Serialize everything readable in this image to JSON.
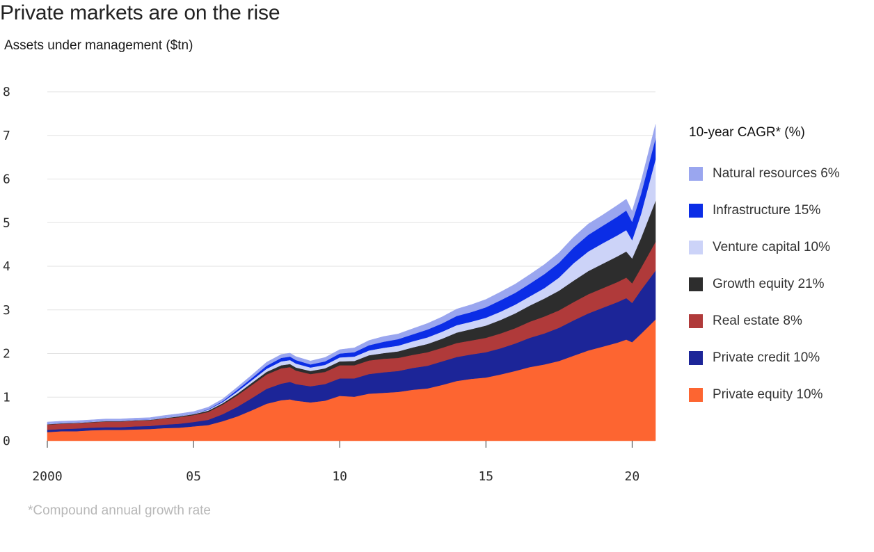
{
  "title": "Private markets are on the rise",
  "subtitle": "Assets under management ($tn)",
  "footnote": "*Compound annual growth rate",
  "legend_title": "10-year CAGR* (%)",
  "chart_data": {
    "type": "area",
    "stacked": true,
    "title": "Private markets are on the rise",
    "ylabel": "Assets under management ($tn)",
    "xlabel": "",
    "xlim": [
      2000,
      2020.8
    ],
    "ylim": [
      0,
      8
    ],
    "y_ticks": [
      0,
      1,
      2,
      3,
      4,
      5,
      6,
      7,
      8
    ],
    "y_tick_labels": [
      "0",
      "1",
      "2",
      "3",
      "4",
      "5",
      "6",
      "7",
      "8"
    ],
    "x_ticks": [
      2000,
      2005,
      2010,
      2015,
      2020
    ],
    "x_tick_labels": [
      "2000",
      "05",
      "10",
      "15",
      "20"
    ],
    "grid": true,
    "legend_position": "right",
    "x": [
      2000,
      2000.5,
      2001,
      2001.5,
      2002,
      2002.5,
      2003,
      2003.5,
      2004,
      2004.5,
      2005,
      2005.5,
      2006,
      2006.5,
      2007,
      2007.5,
      2008,
      2008.3,
      2008.5,
      2009,
      2009.5,
      2010,
      2010.5,
      2011,
      2011.5,
      2012,
      2012.5,
      2013,
      2013.5,
      2014,
      2014.5,
      2015,
      2015.5,
      2016,
      2016.5,
      2017,
      2017.5,
      2018,
      2018.5,
      2019,
      2019.5,
      2019.8,
      2020,
      2020.3,
      2020.8
    ],
    "series": [
      {
        "name": "Private equity 10%",
        "color": "#fd6531",
        "values": [
          0.2,
          0.22,
          0.22,
          0.24,
          0.25,
          0.25,
          0.26,
          0.27,
          0.29,
          0.3,
          0.33,
          0.36,
          0.45,
          0.56,
          0.7,
          0.85,
          0.93,
          0.95,
          0.92,
          0.88,
          0.92,
          1.03,
          1.01,
          1.08,
          1.1,
          1.12,
          1.17,
          1.2,
          1.28,
          1.37,
          1.42,
          1.45,
          1.52,
          1.6,
          1.69,
          1.75,
          1.83,
          1.95,
          2.07,
          2.16,
          2.25,
          2.32,
          2.26,
          2.45,
          2.78
        ]
      },
      {
        "name": "Private credit 10%",
        "color": "#1c2598",
        "values": [
          0.05,
          0.05,
          0.06,
          0.06,
          0.06,
          0.06,
          0.07,
          0.07,
          0.08,
          0.09,
          0.1,
          0.12,
          0.16,
          0.22,
          0.28,
          0.34,
          0.38,
          0.4,
          0.38,
          0.37,
          0.38,
          0.4,
          0.42,
          0.45,
          0.47,
          0.48,
          0.5,
          0.52,
          0.54,
          0.55,
          0.56,
          0.58,
          0.6,
          0.63,
          0.67,
          0.71,
          0.76,
          0.81,
          0.85,
          0.89,
          0.93,
          0.95,
          0.9,
          1.0,
          1.12
        ]
      },
      {
        "name": "Real estate 8%",
        "color": "#b03a3a",
        "values": [
          0.12,
          0.12,
          0.12,
          0.12,
          0.13,
          0.13,
          0.13,
          0.13,
          0.14,
          0.15,
          0.16,
          0.18,
          0.22,
          0.26,
          0.3,
          0.33,
          0.35,
          0.34,
          0.31,
          0.28,
          0.28,
          0.3,
          0.3,
          0.31,
          0.31,
          0.3,
          0.3,
          0.31,
          0.31,
          0.32,
          0.32,
          0.33,
          0.34,
          0.35,
          0.37,
          0.39,
          0.4,
          0.42,
          0.44,
          0.45,
          0.46,
          0.47,
          0.45,
          0.51,
          0.66
        ]
      },
      {
        "name": "Growth equity 21%",
        "color": "#2d2d2d",
        "values": [
          0.01,
          0.01,
          0.01,
          0.01,
          0.01,
          0.01,
          0.01,
          0.01,
          0.01,
          0.02,
          0.02,
          0.03,
          0.03,
          0.04,
          0.05,
          0.06,
          0.07,
          0.07,
          0.07,
          0.07,
          0.08,
          0.09,
          0.1,
          0.12,
          0.13,
          0.15,
          0.17,
          0.19,
          0.21,
          0.24,
          0.26,
          0.28,
          0.31,
          0.34,
          0.37,
          0.41,
          0.45,
          0.49,
          0.53,
          0.56,
          0.59,
          0.6,
          0.57,
          0.68,
          0.94
        ]
      },
      {
        "name": "Venture capital 10%",
        "color": "#ccd3f8",
        "values": [
          0.01,
          0.01,
          0.01,
          0.01,
          0.01,
          0.01,
          0.01,
          0.01,
          0.01,
          0.01,
          0.01,
          0.02,
          0.03,
          0.05,
          0.06,
          0.07,
          0.09,
          0.09,
          0.09,
          0.08,
          0.08,
          0.09,
          0.1,
          0.11,
          0.12,
          0.13,
          0.14,
          0.15,
          0.16,
          0.17,
          0.17,
          0.18,
          0.19,
          0.2,
          0.21,
          0.24,
          0.3,
          0.4,
          0.45,
          0.47,
          0.48,
          0.49,
          0.42,
          0.55,
          0.95
        ]
      },
      {
        "name": "Infrastructure 15%",
        "color": "#0b2de6",
        "values": [
          0.0,
          0.0,
          0.0,
          0.0,
          0.0,
          0.0,
          0.0,
          0.0,
          0.0,
          0.0,
          0.0,
          0.01,
          0.02,
          0.04,
          0.05,
          0.07,
          0.08,
          0.08,
          0.08,
          0.07,
          0.08,
          0.09,
          0.1,
          0.12,
          0.14,
          0.15,
          0.16,
          0.18,
          0.19,
          0.21,
          0.22,
          0.24,
          0.26,
          0.27,
          0.29,
          0.32,
          0.34,
          0.36,
          0.38,
          0.4,
          0.43,
          0.45,
          0.42,
          0.46,
          0.48
        ]
      },
      {
        "name": "Natural resources 6%",
        "color": "#9aa6ef",
        "values": [
          0.04,
          0.04,
          0.04,
          0.04,
          0.04,
          0.04,
          0.04,
          0.04,
          0.05,
          0.05,
          0.05,
          0.05,
          0.05,
          0.06,
          0.07,
          0.08,
          0.08,
          0.08,
          0.08,
          0.08,
          0.09,
          0.09,
          0.1,
          0.11,
          0.12,
          0.12,
          0.13,
          0.14,
          0.15,
          0.16,
          0.17,
          0.18,
          0.19,
          0.2,
          0.21,
          0.22,
          0.23,
          0.24,
          0.25,
          0.25,
          0.26,
          0.26,
          0.24,
          0.28,
          0.32
        ]
      }
    ]
  },
  "legend": [
    {
      "label": "Natural resources 6%",
      "color": "#9aa6ef"
    },
    {
      "label": "Infrastructure 15%",
      "color": "#0b2de6"
    },
    {
      "label": "Venture capital 10%",
      "color": "#ccd3f8"
    },
    {
      "label": "Growth equity 21%",
      "color": "#2d2d2d"
    },
    {
      "label": "Real estate 8%",
      "color": "#b03a3a"
    },
    {
      "label": "Private credit 10%",
      "color": "#1c2598"
    },
    {
      "label": "Private equity 10%",
      "color": "#fd6531"
    }
  ]
}
